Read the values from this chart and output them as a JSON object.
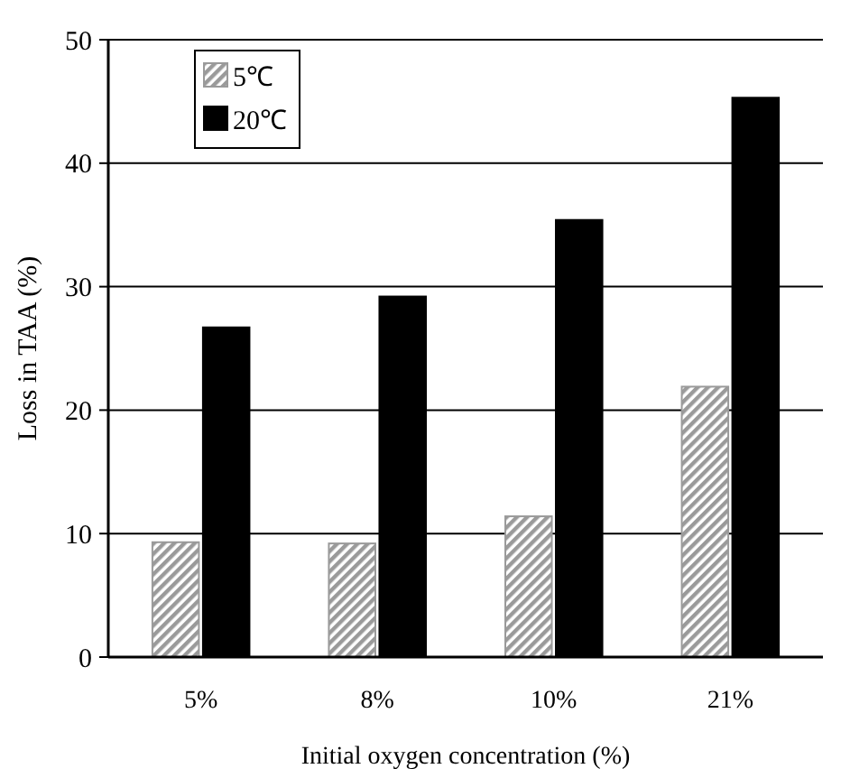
{
  "chart_data": {
    "type": "bar",
    "xlabel": "Initial oxygen concentration (%)",
    "ylabel": "Loss in TAA (%)",
    "categories": [
      "5%",
      "8%",
      "10%",
      "21%"
    ],
    "series": [
      {
        "name": "5℃",
        "color": "#9a9a9a",
        "values": [
          9.3,
          9.2,
          11.4,
          21.9
        ]
      },
      {
        "name": "20℃",
        "color": "#000000",
        "values": [
          26.7,
          29.2,
          35.4,
          45.3
        ]
      }
    ],
    "ylim": [
      0,
      50
    ],
    "yticks": [
      0,
      10,
      20,
      30,
      40,
      50
    ],
    "grid": "y",
    "legend": "top left"
  }
}
